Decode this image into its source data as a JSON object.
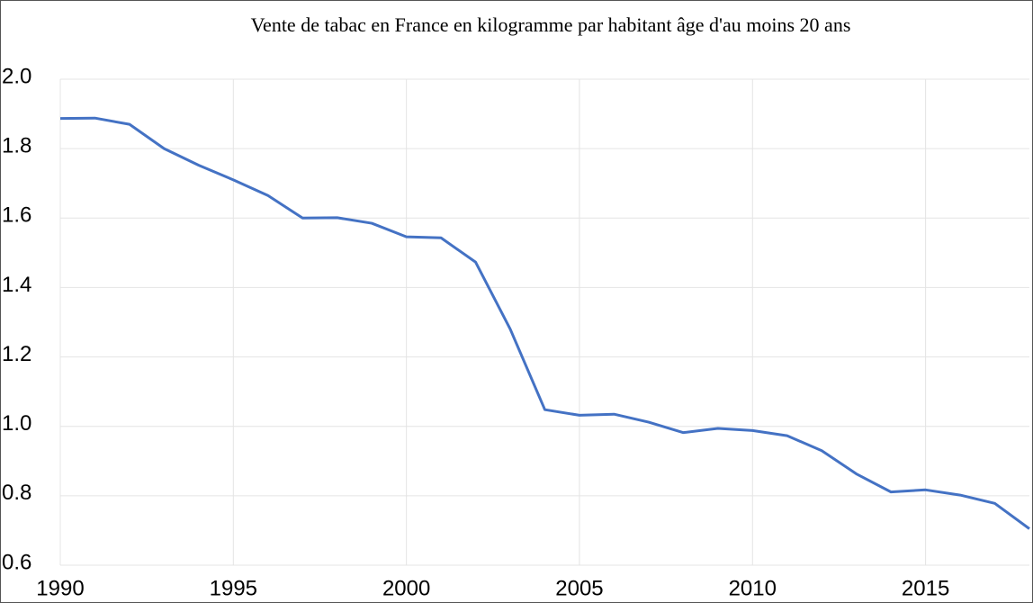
{
  "chart_data": {
    "type": "line",
    "title": "Vente de tabac en France en kilogramme par habitant âge d'au moins 20 ans",
    "x": [
      1990,
      1991,
      1992,
      1993,
      1994,
      1995,
      1996,
      1997,
      1998,
      1999,
      2000,
      2001,
      2002,
      2003,
      2004,
      2005,
      2006,
      2007,
      2008,
      2009,
      2010,
      2011,
      2012,
      2013,
      2014,
      2015,
      2016,
      2017,
      2018
    ],
    "series": [
      {
        "name": "Vente de tabac",
        "color": "#4472c4",
        "values": [
          1.887,
          1.888,
          1.87,
          1.8,
          1.752,
          1.71,
          1.665,
          1.6,
          1.601,
          1.585,
          1.546,
          1.543,
          1.473,
          1.28,
          1.048,
          1.032,
          1.035,
          1.012,
          0.982,
          0.994,
          0.988,
          0.973,
          0.93,
          0.863,
          0.811,
          0.817,
          0.802,
          0.778,
          0.705
        ]
      }
    ],
    "xlim": [
      1990,
      2018
    ],
    "xticks": [
      1990,
      1995,
      2000,
      2005,
      2010,
      2015
    ],
    "ylim": [
      0.6,
      2.0
    ],
    "yticks": [
      0.6,
      0.8,
      {
        "value": 1.0,
        "label": "1.0"
      },
      1.2,
      1.4,
      1.6,
      1.8,
      {
        "value": 2.0,
        "label": "2.0"
      }
    ],
    "grid": true
  }
}
